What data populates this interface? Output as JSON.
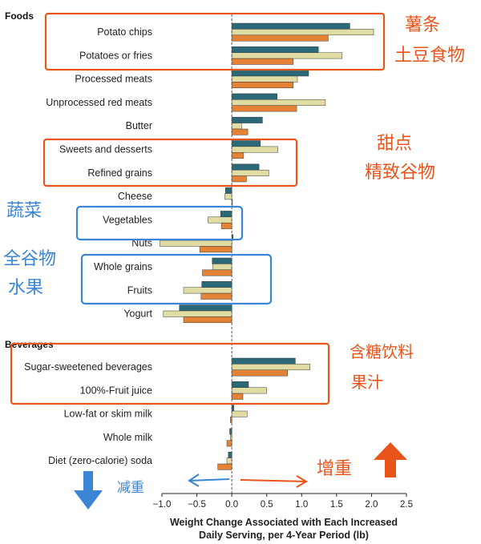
{
  "chart_data": {
    "type": "bar",
    "orientation": "horizontal",
    "xlabel_lines": [
      "Weight Change Associated with Each Increased",
      "Daily Serving, per 4-Year Period (lb)"
    ],
    "xlim": [
      -1.0,
      2.5
    ],
    "xticks": [
      "−1.0",
      "−0.5",
      "0.0",
      "0.5",
      "1.0",
      "1.5",
      "2.0",
      "2.5"
    ],
    "sections": [
      {
        "title": "Foods",
        "categories": [
          "Potato chips",
          "Potatoes or fries",
          "Processed meats",
          "Unprocessed red meats",
          "Butter",
          "Sweets and desserts",
          "Refined grains",
          "Cheese",
          "Vegetables",
          "Nuts",
          "Whole grains",
          "Fruits",
          "Yogurt"
        ]
      },
      {
        "title": "Beverages",
        "categories": [
          "Sugar-sweetened beverages",
          "100%-Fruit juice",
          "Low-fat or skim milk",
          "Whole milk",
          "Diet (zero-calorie) soda"
        ]
      }
    ],
    "series": [
      {
        "color": "#2b6878",
        "values": [
          1.69,
          1.24,
          1.1,
          0.65,
          0.44,
          0.41,
          0.39,
          -0.09,
          -0.16,
          0.02,
          -0.28,
          -0.43,
          -0.75,
          0.91,
          0.24,
          0.03,
          -0.03,
          -0.05
        ]
      },
      {
        "color": "#e0dca4",
        "values": [
          2.03,
          1.58,
          0.94,
          1.34,
          0.14,
          0.66,
          0.53,
          -0.1,
          -0.34,
          -1.03,
          -0.27,
          -0.69,
          -0.98,
          1.12,
          0.5,
          0.22,
          -0.02,
          -0.07
        ]
      },
      {
        "color": "#e48335",
        "values": [
          1.38,
          0.88,
          0.88,
          0.93,
          0.23,
          0.17,
          0.21,
          0.01,
          -0.15,
          -0.46,
          -0.42,
          -0.44,
          -0.69,
          0.8,
          0.16,
          -0.02,
          -0.07,
          -0.2
        ]
      }
    ]
  },
  "annotations": {
    "potato": [
      "薯条",
      "土豆食物"
    ],
    "sweets": [
      "甜点",
      "精致谷物"
    ],
    "veg": "蔬菜",
    "grains_fruits": [
      "全谷物",
      "水果"
    ],
    "beverages": [
      "含糖饮料",
      "果汁"
    ],
    "lose": "减重",
    "gain": "增重"
  },
  "colors": {
    "annotation_orange": "#e8541a",
    "annotation_blue": "#3a86d4"
  }
}
